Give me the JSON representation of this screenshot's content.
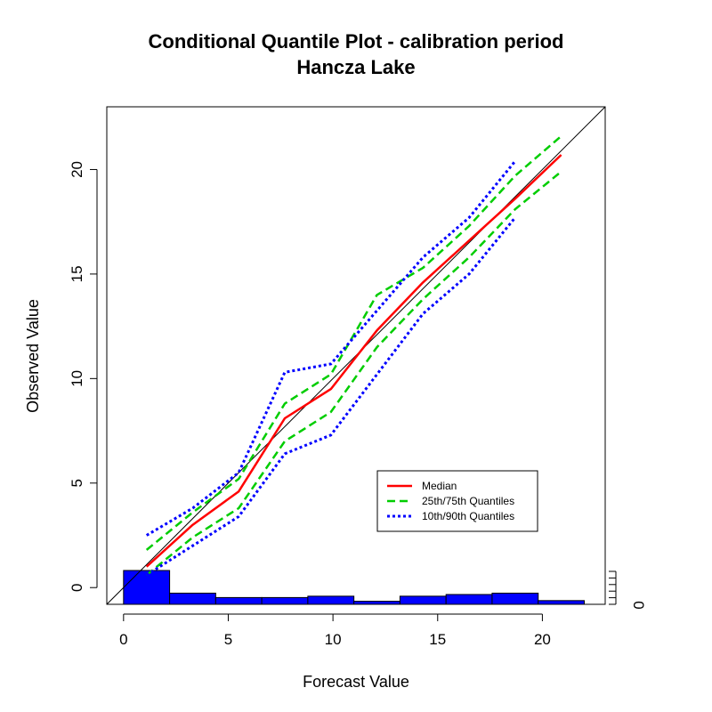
{
  "chart_data": {
    "type": "line",
    "title": "Conditional Quantile Plot - calibration period",
    "subtitle": "Hancza Lake",
    "xlabel": "Forecast Value",
    "ylabel": "Observed Value",
    "xlim": [
      -0.8,
      23.0
    ],
    "ylim": [
      -0.8,
      23.0
    ],
    "x_ticks": [
      0,
      5,
      10,
      15,
      20
    ],
    "y_ticks": [
      0,
      5,
      10,
      15,
      20
    ],
    "reference_line": "y = x",
    "series": [
      {
        "name": "Median",
        "color": "#ff0000",
        "style": "solid",
        "x": [
          1.1,
          3.3,
          5.5,
          7.7,
          9.9,
          12.1,
          14.3,
          16.5,
          18.7,
          20.9
        ],
        "y": [
          1.0,
          3.0,
          4.6,
          8.1,
          9.5,
          12.3,
          14.6,
          16.6,
          18.6,
          20.7
        ]
      },
      {
        "name": "25th/75th Quantiles",
        "color": "#00cd00",
        "style": "dashed",
        "x": [
          1.1,
          3.3,
          5.5,
          7.7,
          9.9,
          12.1,
          14.3,
          16.5,
          18.7,
          20.9
        ],
        "y": [
          1.8,
          3.6,
          5.2,
          8.8,
          10.2,
          14.0,
          15.3,
          17.3,
          19.7,
          21.6
        ]
      },
      {
        "name": "25th/75th Quantiles",
        "color": "#00cd00",
        "style": "dashed",
        "x": [
          1.1,
          3.3,
          5.5,
          7.7,
          9.9,
          12.1,
          14.3,
          16.5,
          18.7,
          20.9
        ],
        "y": [
          0.6,
          2.4,
          3.8,
          7.0,
          8.4,
          11.5,
          13.8,
          15.8,
          18.1,
          19.9
        ]
      },
      {
        "name": "10th/90th Quantiles",
        "color": "#0000ff",
        "style": "dotted",
        "x": [
          1.1,
          3.3,
          5.5,
          7.7,
          9.9,
          14.3,
          16.5,
          18.7
        ],
        "y": [
          2.5,
          3.8,
          5.5,
          10.3,
          10.7,
          15.8,
          17.7,
          20.4
        ]
      },
      {
        "name": "10th/90th Quantiles",
        "color": "#0000ff",
        "style": "dotted",
        "x": [
          1.1,
          3.3,
          5.5,
          7.7,
          9.9,
          14.3,
          16.5,
          18.7
        ],
        "y": [
          0.6,
          2.0,
          3.4,
          6.4,
          7.3,
          13.1,
          15.0,
          17.7
        ]
      }
    ],
    "histogram": {
      "color": "#0000ff",
      "bin_edges": [
        0.0,
        2.2,
        4.4,
        6.6,
        8.8,
        11.0,
        13.2,
        15.4,
        17.6,
        19.8,
        22.0
      ],
      "relative_heights": [
        1.0,
        0.33,
        0.2,
        0.2,
        0.24,
        0.09,
        0.24,
        0.29,
        0.33,
        0.11
      ]
    },
    "legend": {
      "position": "lower-right",
      "entries": [
        {
          "label": "Median",
          "color": "#ff0000",
          "style": "solid"
        },
        {
          "label": "25th/75th Quantiles",
          "color": "#00cd00",
          "style": "dashed"
        },
        {
          "label": "10th/90th Quantiles",
          "color": "#0000ff",
          "style": "dotted"
        }
      ]
    },
    "right_axis_label": "0"
  }
}
